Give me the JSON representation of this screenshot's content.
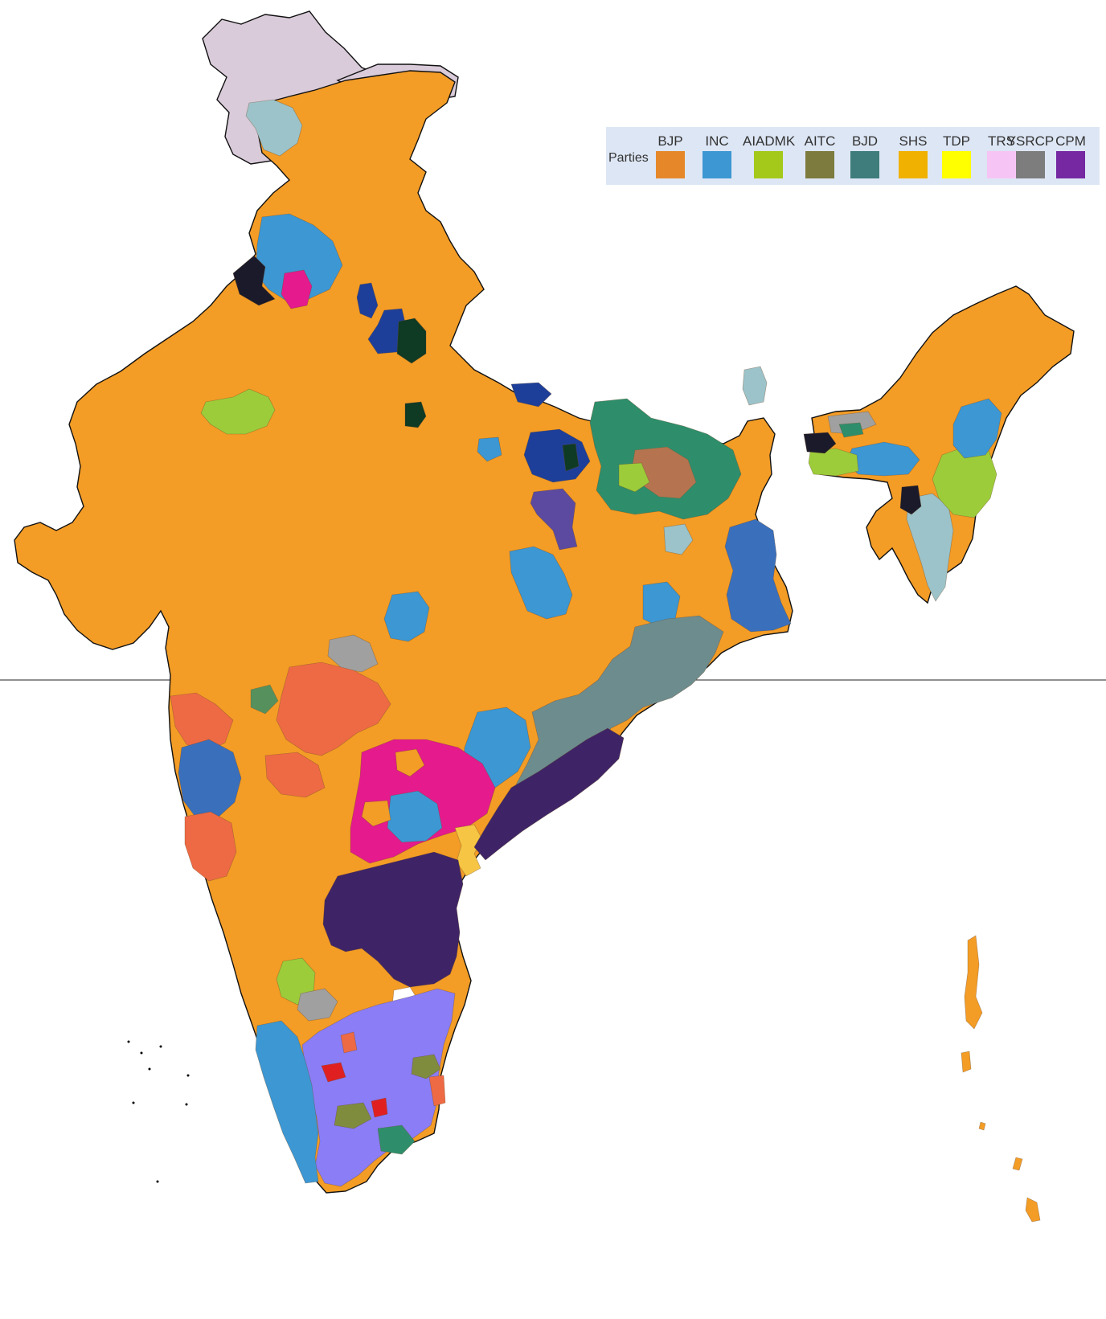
{
  "legend": {
    "title": "Parties",
    "items": [
      {
        "label": "BJP",
        "color": "#e6882a"
      },
      {
        "label": "INC",
        "color": "#3c97d3"
      },
      {
        "label": "AIADMK",
        "color": "#a4c91a"
      },
      {
        "label": "AITC",
        "color": "#7d7b3e"
      },
      {
        "label": "BJD",
        "color": "#3e7d7c"
      },
      {
        "label": "SHS",
        "color": "#f0b100"
      },
      {
        "label": "TDP",
        "color": "#ffff00"
      },
      {
        "label": "TRS",
        "color": "#f7c5f5"
      },
      {
        "label": "YSRCP",
        "color": "#7d7d7d"
      },
      {
        "label": "CPM",
        "color": "#7628a2"
      }
    ]
  },
  "map_colors": {
    "base": "#f39c26",
    "kashmir": "#d9cbd9",
    "light_blue": "#9cc3c9",
    "inc_blue": "#3c97d3",
    "steel_blue": "#3a6fbc",
    "dark_purple": "#3e2466",
    "magenta": "#e51a8c",
    "gray_teal": "#6d8c8e",
    "periwinkle": "#8a7df5",
    "navy": "#1e3f99",
    "dark_green": "#0f3a24",
    "teal_green": "#2e8e6b",
    "coral": "#ee6a44",
    "lime": "#9ccc3a",
    "olive": "#7f8c3e",
    "yellow": "#f6c544",
    "gray": "#a0a0a0",
    "black": "#1a1a2a",
    "slate_purple": "#5b4aa0",
    "red": "#e02020",
    "white": "#ffffff"
  }
}
